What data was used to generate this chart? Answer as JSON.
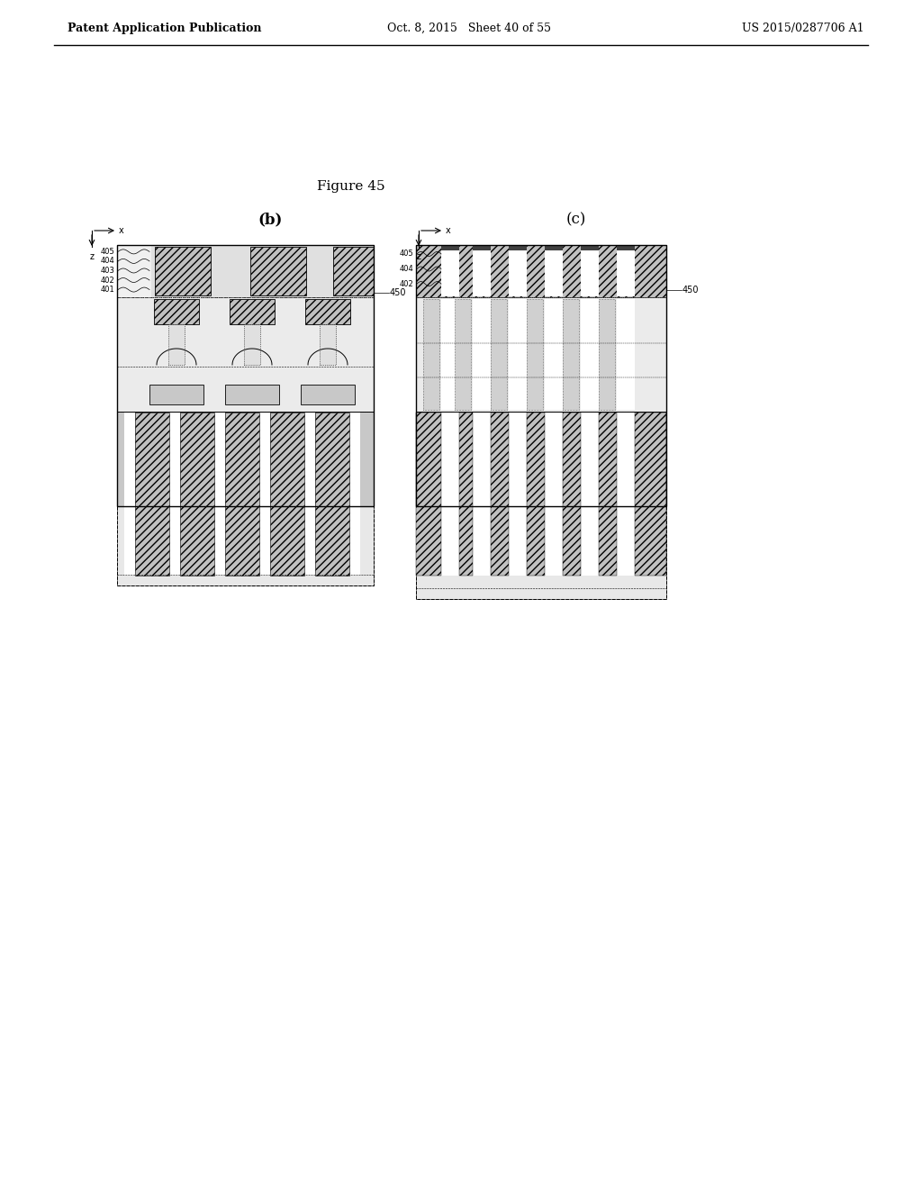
{
  "background_color": "#ffffff",
  "header_left": "Patent Application Publication",
  "header_center": "Oct. 8, 2015   Sheet 40 of 55",
  "header_right": "US 2015/0287706 A1",
  "figure_label": "Figure 45",
  "panel_b_label": "(b)",
  "panel_c_label": "(c)",
  "font_size_header": 9,
  "font_size_label": 11,
  "font_size_annotation": 7,
  "font_size_figure": 11,
  "colors": {
    "white": "#ffffff",
    "light_dotted": "#e0e0e0",
    "medium_gray": "#c8c8c8",
    "dark_hatch": "#b0b0b0",
    "very_light": "#f0f0f0",
    "substrate_light": "#e8e8e8",
    "bottom_band": "#d8d8d8",
    "border": "#000000"
  }
}
